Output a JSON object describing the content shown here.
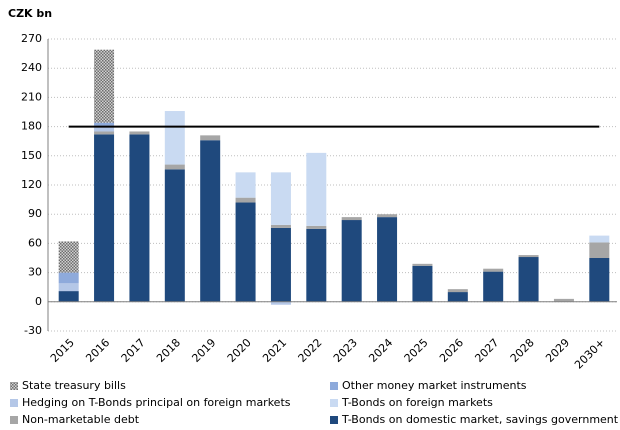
{
  "chart_data": {
    "type": "stacked_bar",
    "y_title": "CZK bn",
    "categories": [
      "2015",
      "2016",
      "2017",
      "2018",
      "2019",
      "2020",
      "2021",
      "2022",
      "2023",
      "2024",
      "2025",
      "2026",
      "2027",
      "2028",
      "2029",
      "2030+"
    ],
    "series": [
      {
        "name": "State treasury bills",
        "color": "#8c8c8c",
        "hatch": true,
        "values": [
          32,
          75,
          0,
          0,
          0,
          0,
          0,
          0,
          0,
          0,
          0,
          0,
          0,
          0,
          0,
          0
        ]
      },
      {
        "name": "Other money market instruments",
        "color": "#8eaadb",
        "values": [
          11,
          3,
          0,
          0,
          0,
          0,
          0,
          0,
          0,
          0,
          0,
          0,
          0,
          0,
          0,
          0
        ]
      },
      {
        "name": "Hedging on T-Bonds principal on foreign markets",
        "color": "#b4c7e7",
        "values": [
          8,
          6,
          0,
          0,
          0,
          0,
          -3,
          0,
          0,
          0,
          0,
          0,
          0,
          0,
          0,
          0
        ]
      },
      {
        "name": "T-Bonds on foreign markets",
        "color": "#c9daf2",
        "values": [
          0,
          0,
          0,
          55,
          0,
          26,
          54,
          75,
          0,
          0,
          0,
          0,
          0,
          0,
          0,
          7
        ]
      },
      {
        "name": "Non-marketable debt",
        "color": "#a6a6a6",
        "values": [
          0,
          3,
          3,
          5,
          5,
          5,
          3,
          3,
          3,
          3,
          2,
          3,
          3,
          2,
          3,
          16
        ]
      },
      {
        "name": "T-Bonds on domestic market, savings government bonds",
        "color": "#1f497d",
        "values": [
          11,
          172,
          172,
          136,
          166,
          102,
          76,
          75,
          84,
          87,
          37,
          10,
          31,
          46,
          0,
          45
        ]
      }
    ],
    "reference_line": 180,
    "ylim": [
      -30,
      270
    ],
    "yticks": [
      -30,
      0,
      30,
      60,
      90,
      120,
      150,
      180,
      210,
      240,
      270
    ],
    "grid": true
  }
}
